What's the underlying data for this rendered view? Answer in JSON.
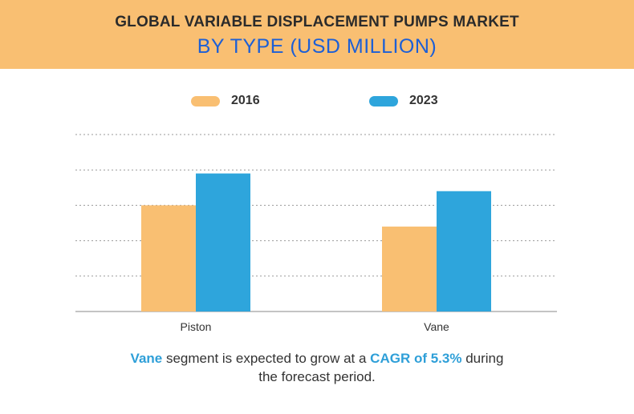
{
  "header": {
    "title_line1": "GLOBAL VARIABLE DISPLACEMENT PUMPS MARKET",
    "title_line2": "BY TYPE (USD MILLION)",
    "background_color": "#f9bf72",
    "title_line2_color": "#1c5fd6"
  },
  "legend": {
    "placement": "top-center",
    "items": [
      {
        "label": "2016",
        "color": "#f9bf72"
      },
      {
        "label": "2023",
        "color": "#2ea5dc"
      }
    ]
  },
  "chart_data": {
    "type": "bar",
    "title": "GLOBAL VARIABLE DISPLACEMENT PUMPS MARKET BY TYPE (USD MILLION)",
    "categories": [
      "Piston",
      "Vane"
    ],
    "series": [
      {
        "name": "2016",
        "values": [
          3.0,
          2.4
        ],
        "color": "#f9bf72"
      },
      {
        "name": "2023",
        "values": [
          3.9,
          3.4
        ],
        "color": "#2ea5dc"
      }
    ],
    "xlabel": "",
    "ylabel": "",
    "ylim": [
      0,
      5
    ],
    "y_tick_labels_shown": false,
    "grid": true,
    "grid_style": "dashed"
  },
  "caption": {
    "highlight1": "Vane",
    "text1": " segment is expected to grow at a ",
    "highlight2": "CAGR of 5.3%",
    "text2": " during",
    "line2": "the forecast period.",
    "highlight_color": "#2e9fd8"
  }
}
